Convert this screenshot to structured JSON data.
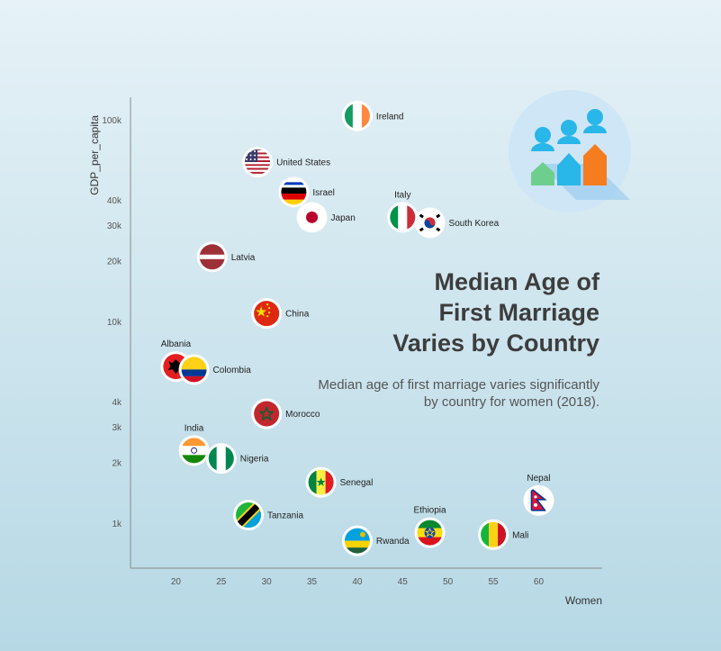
{
  "title_line1": "Median Age of",
  "title_line2": "First Marriage",
  "title_line3": "Varies by Country",
  "subtitle": "Median age of first marriage varies significantly by country for women (2018).",
  "chart_data": {
    "type": "scatter",
    "title": "Median Age of First Marriage Varies by Country",
    "subtitle": "Median age of first marriage varies significantly by country for women (2018).",
    "xlabel": "Women",
    "ylabel": "GDP_per_capita",
    "y_scale": "log",
    "xlim": [
      15,
      67
    ],
    "ylim": [
      600,
      130000
    ],
    "x_ticks": [
      20,
      25,
      30,
      35,
      40,
      45,
      50,
      55,
      60
    ],
    "y_ticks": [
      {
        "value": 1000,
        "label": "1k"
      },
      {
        "value": 2000,
        "label": "2k"
      },
      {
        "value": 3000,
        "label": "3k"
      },
      {
        "value": 4000,
        "label": "4k"
      },
      {
        "value": 10000,
        "label": "10k"
      },
      {
        "value": 20000,
        "label": "20k"
      },
      {
        "value": 30000,
        "label": "30k"
      },
      {
        "value": 40000,
        "label": "40k"
      },
      {
        "value": 100000,
        "label": "100k"
      }
    ],
    "points": [
      {
        "country": "Ireland",
        "x": 40,
        "y": 105000,
        "label_pos": "right"
      },
      {
        "country": "United States",
        "x": 29,
        "y": 62000,
        "label_pos": "right"
      },
      {
        "country": "Israel",
        "x": 33,
        "y": 44000,
        "label_pos": "right"
      },
      {
        "country": "Japan",
        "x": 35,
        "y": 33000,
        "label_pos": "right"
      },
      {
        "country": "Italy",
        "x": 45,
        "y": 33000,
        "label_pos": "top"
      },
      {
        "country": "South Korea",
        "x": 48,
        "y": 31000,
        "label_pos": "right"
      },
      {
        "country": "Latvia",
        "x": 24,
        "y": 21000,
        "label_pos": "right"
      },
      {
        "country": "China",
        "x": 30,
        "y": 11000,
        "label_pos": "right"
      },
      {
        "country": "Albania",
        "x": 20,
        "y": 6000,
        "label_pos": "top"
      },
      {
        "country": "Colombia",
        "x": 22,
        "y": 5800,
        "label_pos": "right"
      },
      {
        "country": "Morocco",
        "x": 30,
        "y": 3500,
        "label_pos": "right"
      },
      {
        "country": "India",
        "x": 22,
        "y": 2300,
        "label_pos": "top"
      },
      {
        "country": "Nigeria",
        "x": 25,
        "y": 2100,
        "label_pos": "right"
      },
      {
        "country": "Senegal",
        "x": 36,
        "y": 1600,
        "label_pos": "right"
      },
      {
        "country": "Tanzania",
        "x": 28,
        "y": 1100,
        "label_pos": "right"
      },
      {
        "country": "Rwanda",
        "x": 40,
        "y": 820,
        "label_pos": "right"
      },
      {
        "country": "Ethiopia",
        "x": 48,
        "y": 900,
        "label_pos": "top"
      },
      {
        "country": "Mali",
        "x": 55,
        "y": 880,
        "label_pos": "right"
      },
      {
        "country": "Nepal",
        "x": 60,
        "y": 1300,
        "label_pos": "top"
      }
    ]
  },
  "colors": {
    "axis": "#8a8a8a",
    "icon_bg": "#cfe6f7",
    "icon_shadow": "#8ec5ef",
    "people_blue": "#29b6e8",
    "people_green": "#6ecf8d",
    "people_orange": "#f57c1f"
  }
}
